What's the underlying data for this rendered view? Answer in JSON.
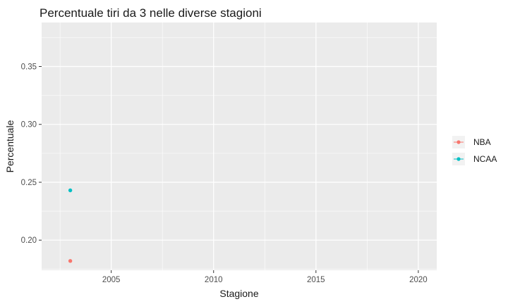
{
  "chart_data": {
    "type": "scatter",
    "title": "Percentuale tiri da 3 nelle diverse stagioni",
    "xlabel": "Stagione",
    "ylabel": "Percentuale",
    "xlim": [
      2001.6,
      2020.9
    ],
    "ylim": [
      0.174,
      0.388
    ],
    "xticks": [
      2005,
      2010,
      2015,
      2020
    ],
    "yticks": [
      0.2,
      0.25,
      0.3,
      0.35
    ],
    "xtick_labels": [
      "2005",
      "2010",
      "2015",
      "2020"
    ],
    "ytick_labels": [
      "0.20",
      "0.25",
      "0.30",
      "0.35"
    ],
    "grid": true,
    "legend_position": "right",
    "series": [
      {
        "name": "NBA",
        "color": "#F8766D",
        "points": [
          {
            "x": 2003,
            "y": 0.182
          }
        ]
      },
      {
        "name": "NCAA",
        "color": "#00BFC4",
        "points": [
          {
            "x": 2003,
            "y": 0.243
          }
        ]
      }
    ]
  }
}
